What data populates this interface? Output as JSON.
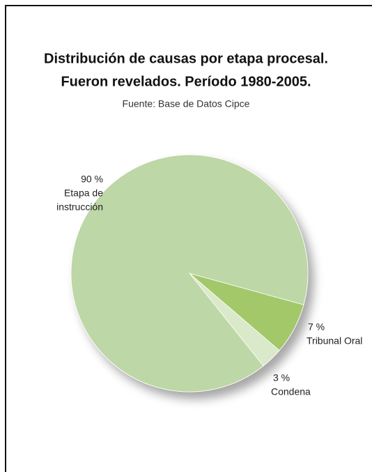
{
  "chart_data": {
    "type": "pie",
    "title": [
      "Distribución de causas por etapa procesal.",
      "Fueron revelados. Período 1980-2005."
    ],
    "subtitle": "Fuente: Base de Datos Cipce",
    "categories": [
      "Etapa de instrucción",
      "Tribunal Oral",
      "Condena"
    ],
    "category_lines": [
      [
        "Etapa de",
        "instrucción"
      ],
      [
        "Tribunal Oral"
      ],
      [
        "Condena"
      ]
    ],
    "values": [
      90,
      7,
      3
    ],
    "value_labels": [
      "90 %",
      "7 %",
      "3 %"
    ],
    "colors": [
      "#bdd7a6",
      "#a2c86a",
      "#dae9c9"
    ]
  }
}
